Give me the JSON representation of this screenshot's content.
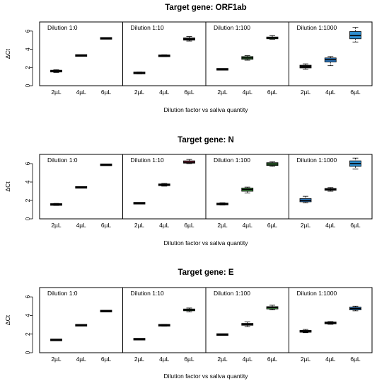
{
  "chart_data": [
    {
      "type": "box",
      "title": "Target gene: ORF1ab",
      "xlabel": "Dilution factor vs saliva quantity",
      "ylabel": "ΔCt",
      "ylim": [
        0,
        7
      ],
      "yticks": [
        "0",
        "2",
        "4",
        "6"
      ],
      "categories": [
        "2µL",
        "4µL",
        "6µL"
      ],
      "panels": [
        {
          "label": "Dilution 1:0",
          "boxes": [
            {
              "min": 1.45,
              "q1": 1.5,
              "median": 1.6,
              "q3": 1.7,
              "max": 1.75,
              "color": "#1a1a1a"
            },
            {
              "min": 3.3,
              "q1": 3.3,
              "median": 3.32,
              "q3": 3.34,
              "max": 3.35,
              "color": "#1a1a1a"
            },
            {
              "min": 5.18,
              "q1": 5.18,
              "median": 5.2,
              "q3": 5.22,
              "max": 5.22,
              "color": "#1a1a1a"
            }
          ]
        },
        {
          "label": "Dilution 1:10",
          "boxes": [
            {
              "min": 1.3,
              "q1": 1.35,
              "median": 1.4,
              "q3": 1.45,
              "max": 1.5,
              "color": "#1a1a1a"
            },
            {
              "min": 3.2,
              "q1": 3.22,
              "median": 3.3,
              "q3": 3.35,
              "max": 3.4,
              "color": "#1a1a1a"
            },
            {
              "min": 4.9,
              "q1": 5.0,
              "median": 5.12,
              "q3": 5.25,
              "max": 5.4,
              "color": "#1a1a1a"
            }
          ]
        },
        {
          "label": "Dilution 1:100",
          "boxes": [
            {
              "min": 1.78,
              "q1": 1.78,
              "median": 1.8,
              "q3": 1.82,
              "max": 1.82,
              "color": "#1a1a1a"
            },
            {
              "min": 2.8,
              "q1": 2.9,
              "median": 3.05,
              "q3": 3.2,
              "max": 3.3,
              "color": "#3f8a3f"
            },
            {
              "min": 5.1,
              "q1": 5.15,
              "median": 5.25,
              "q3": 5.35,
              "max": 5.5,
              "color": "#3f8a3f"
            }
          ]
        },
        {
          "label": "Dilution 1:1000",
          "boxes": [
            {
              "min": 1.8,
              "q1": 1.95,
              "median": 2.1,
              "q3": 2.25,
              "max": 2.4,
              "color": "#1a1a1a"
            },
            {
              "min": 2.2,
              "q1": 2.6,
              "median": 2.85,
              "q3": 3.05,
              "max": 3.2,
              "color": "#2e7bc4"
            },
            {
              "min": 4.8,
              "q1": 5.15,
              "median": 5.5,
              "q3": 5.95,
              "max": 6.4,
              "color": "#2e8fd0"
            }
          ]
        }
      ]
    },
    {
      "type": "box",
      "title": "Target gene: N",
      "xlabel": "Dilution factor vs saliva quantity",
      "ylabel": "ΔCt",
      "ylim": [
        0,
        7
      ],
      "yticks": [
        "0",
        "2",
        "4",
        "6"
      ],
      "categories": [
        "2µL",
        "4µL",
        "6µL"
      ],
      "panels": [
        {
          "label": "Dilution 1:0",
          "boxes": [
            {
              "min": 1.45,
              "q1": 1.5,
              "median": 1.55,
              "q3": 1.62,
              "max": 1.68,
              "color": "#1a1a1a"
            },
            {
              "min": 3.4,
              "q1": 3.4,
              "median": 3.42,
              "q3": 3.44,
              "max": 3.44,
              "color": "#1a1a1a"
            },
            {
              "min": 5.85,
              "q1": 5.85,
              "median": 5.87,
              "q3": 5.89,
              "max": 5.89,
              "color": "#1a1a1a"
            }
          ]
        },
        {
          "label": "Dilution 1:10",
          "boxes": [
            {
              "min": 1.68,
              "q1": 1.68,
              "median": 1.7,
              "q3": 1.72,
              "max": 1.72,
              "color": "#1a1a1a"
            },
            {
              "min": 3.55,
              "q1": 3.62,
              "median": 3.7,
              "q3": 3.78,
              "max": 3.85,
              "color": "#1a1a1a"
            },
            {
              "min": 6.0,
              "q1": 6.05,
              "median": 6.15,
              "q3": 6.3,
              "max": 6.45,
              "color": "#b0354f"
            }
          ]
        },
        {
          "label": "Dilution 1:100",
          "boxes": [
            {
              "min": 1.5,
              "q1": 1.55,
              "median": 1.62,
              "q3": 1.68,
              "max": 1.75,
              "color": "#1a1a1a"
            },
            {
              "min": 2.8,
              "q1": 3.0,
              "median": 3.2,
              "q3": 3.35,
              "max": 3.45,
              "color": "#3f8a3f"
            },
            {
              "min": 5.7,
              "q1": 5.8,
              "median": 5.95,
              "q3": 6.1,
              "max": 6.2,
              "color": "#3f8a3f"
            }
          ]
        },
        {
          "label": "Dilution 1:1000",
          "boxes": [
            {
              "min": 1.75,
              "q1": 1.85,
              "median": 2.0,
              "q3": 2.2,
              "max": 2.45,
              "color": "#2e7bc4"
            },
            {
              "min": 3.0,
              "q1": 3.1,
              "median": 3.2,
              "q3": 3.3,
              "max": 3.4,
              "color": "#1a1a1a"
            },
            {
              "min": 5.4,
              "q1": 5.7,
              "median": 6.0,
              "q3": 6.3,
              "max": 6.6,
              "color": "#2e8fd0"
            }
          ]
        }
      ]
    },
    {
      "type": "box",
      "title": "Target gene: E",
      "xlabel": "Dilution factor vs saliva quantity",
      "ylabel": "ΔCt",
      "ylim": [
        0,
        7
      ],
      "yticks": [
        "0",
        "2",
        "4",
        "6"
      ],
      "categories": [
        "2µL",
        "4µL",
        "6µL"
      ],
      "panels": [
        {
          "label": "Dilution 1:0",
          "boxes": [
            {
              "min": 1.32,
              "q1": 1.35,
              "median": 1.37,
              "q3": 1.4,
              "max": 1.42,
              "color": "#1a1a1a"
            },
            {
              "min": 2.93,
              "q1": 2.93,
              "median": 2.95,
              "q3": 2.97,
              "max": 2.97,
              "color": "#1a1a1a"
            },
            {
              "min": 4.45,
              "q1": 4.45,
              "median": 4.47,
              "q3": 4.49,
              "max": 4.49,
              "color": "#1a1a1a"
            }
          ]
        },
        {
          "label": "Dilution 1:10",
          "boxes": [
            {
              "min": 1.4,
              "q1": 1.43,
              "median": 1.45,
              "q3": 1.48,
              "max": 1.5,
              "color": "#1a1a1a"
            },
            {
              "min": 2.85,
              "q1": 2.9,
              "median": 2.95,
              "q3": 3.0,
              "max": 3.05,
              "color": "#1a1a1a"
            },
            {
              "min": 4.4,
              "q1": 4.5,
              "median": 4.6,
              "q3": 4.7,
              "max": 4.8,
              "color": "#3f8a3f"
            }
          ]
        },
        {
          "label": "Dilution 1:100",
          "boxes": [
            {
              "min": 1.93,
              "q1": 1.93,
              "median": 1.95,
              "q3": 1.97,
              "max": 1.97,
              "color": "#1a1a1a"
            },
            {
              "min": 2.8,
              "q1": 2.95,
              "median": 3.05,
              "q3": 3.15,
              "max": 3.3,
              "color": "#1a1a1a"
            },
            {
              "min": 4.6,
              "q1": 4.7,
              "median": 4.85,
              "q3": 4.95,
              "max": 5.1,
              "color": "#3f8a3f"
            }
          ]
        },
        {
          "label": "Dilution 1:1000",
          "boxes": [
            {
              "min": 2.15,
              "q1": 2.2,
              "median": 2.3,
              "q3": 2.4,
              "max": 2.5,
              "color": "#1a1a1a"
            },
            {
              "min": 3.05,
              "q1": 3.1,
              "median": 3.2,
              "q3": 3.3,
              "max": 3.35,
              "color": "#1a1a1a"
            },
            {
              "min": 4.5,
              "q1": 4.6,
              "median": 4.75,
              "q3": 4.9,
              "max": 5.0,
              "color": "#2e7bc4"
            }
          ]
        }
      ]
    }
  ]
}
